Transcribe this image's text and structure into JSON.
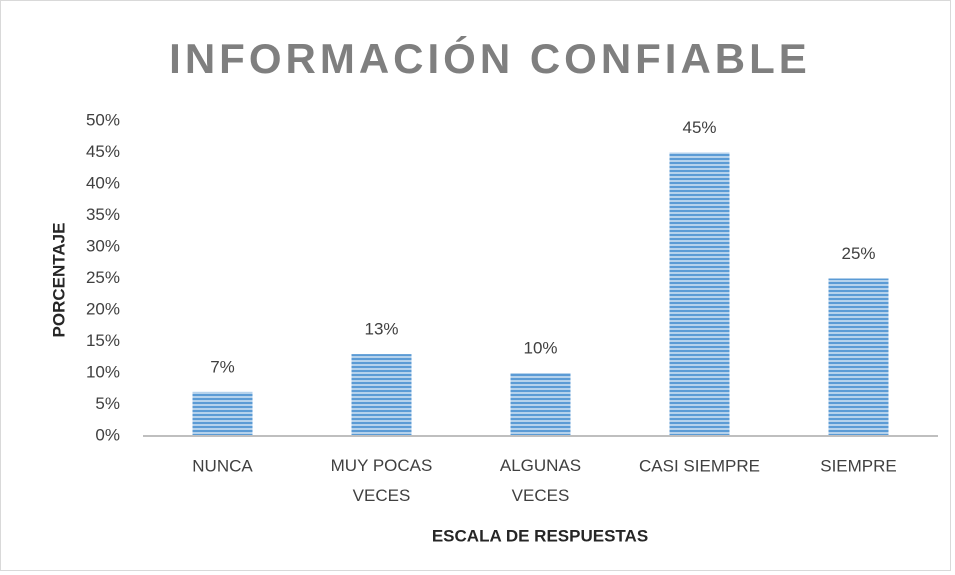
{
  "chart_data": {
    "type": "bar",
    "title": "INFORMACIÓN CONFIABLE",
    "x_label": "ESCALA DE RESPUESTAS",
    "y_label": "PORCENTAJE",
    "categories": [
      "NUNCA",
      "MUY POCAS VECES",
      "ALGUNAS VECES",
      "CASI SIEMPRE",
      "SIEMPRE"
    ],
    "values": [
      7,
      13,
      10,
      45,
      25
    ],
    "value_labels": [
      "7%",
      "13%",
      "10%",
      "45%",
      "25%"
    ],
    "color": "#5b9bd5",
    "ylim": [
      0,
      50
    ],
    "yticks": [
      {
        "value": 0,
        "label": "0%"
      },
      {
        "value": 5,
        "label": "5%"
      },
      {
        "value": 10,
        "label": "10%"
      },
      {
        "value": 15,
        "label": "15%"
      },
      {
        "value": 20,
        "label": "20%"
      },
      {
        "value": 25,
        "label": "25%"
      },
      {
        "value": 30,
        "label": "30%"
      },
      {
        "value": 35,
        "label": "35%"
      },
      {
        "value": 40,
        "label": "40%"
      },
      {
        "value": 45,
        "label": "45%"
      },
      {
        "value": 50,
        "label": "50%"
      }
    ],
    "grid": false
  }
}
